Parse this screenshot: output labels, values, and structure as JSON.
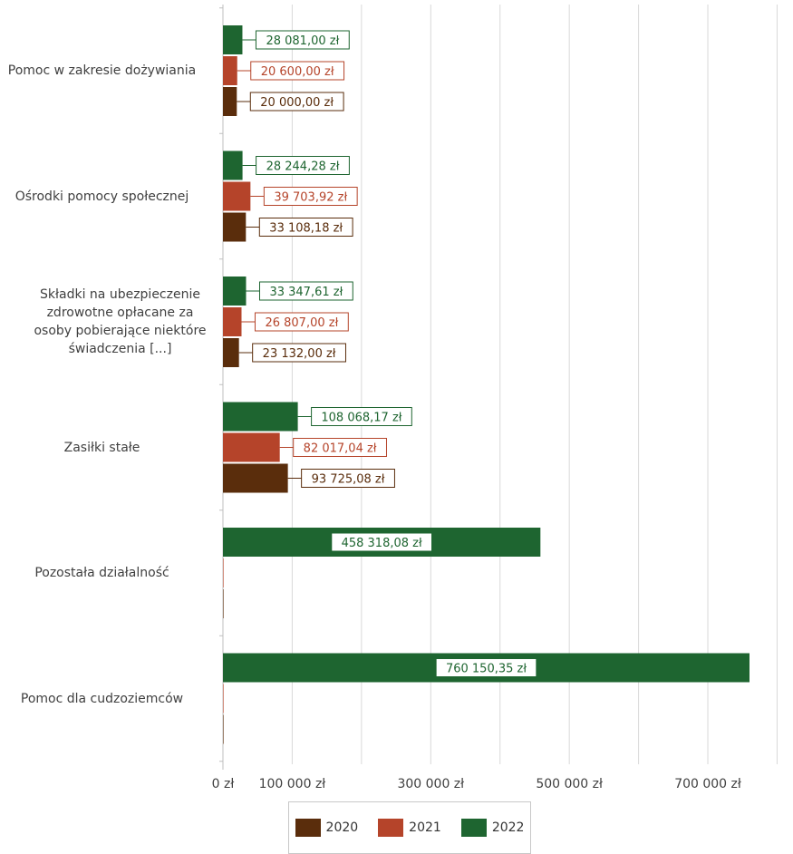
{
  "chart_data": {
    "type": "bar",
    "orientation": "horizontal",
    "categories": [
      "Pomoc w zakresie dożywiania",
      "Ośrodki pomocy społecznej",
      "Składki na ubezpieczenie zdrowotne opłacane za osoby pobierające niektóre świadczenia [...]",
      "Zasiłki stałe",
      "Pozostała działalność",
      "Pomoc dla cudzoziemców"
    ],
    "series": [
      {
        "name": "2020",
        "color": "#5a2d0c",
        "values": [
          20000.0,
          33108.18,
          23132.0,
          93725.08,
          0,
          0
        ],
        "labels": [
          "20 000,00 zł",
          "33 108,18 zł",
          "23 132,00 zł",
          "93 725,08 zł",
          "",
          ""
        ]
      },
      {
        "name": "2021",
        "color": "#b5442a",
        "values": [
          20600.0,
          39703.92,
          26807.0,
          82017.04,
          0,
          0
        ],
        "labels": [
          "20 600,00 zł",
          "39 703,92 zł",
          "26 807,00 zł",
          "82 017,04 zł",
          "",
          ""
        ]
      },
      {
        "name": "2022",
        "color": "#1e6530",
        "values": [
          28081.0,
          28244.28,
          33347.61,
          108068.17,
          458318.08,
          760150.35
        ],
        "labels": [
          "28 081,00 zł",
          "28 244,28 zł",
          "33 347,61 zł",
          "108 068,17 zł",
          "458 318,08 zł",
          "760 150,35 zł"
        ]
      }
    ],
    "xticks": [
      0,
      100000,
      300000,
      500000,
      700000
    ],
    "xtick_labels": [
      "0 zł",
      "100 000 zł",
      "300 000 zł",
      "500 000 zł",
      "700 000 zł"
    ],
    "xlim": [
      0,
      800000
    ],
    "grid": true,
    "legend_position": "bottom",
    "title": "",
    "xlabel": "",
    "ylabel": ""
  }
}
